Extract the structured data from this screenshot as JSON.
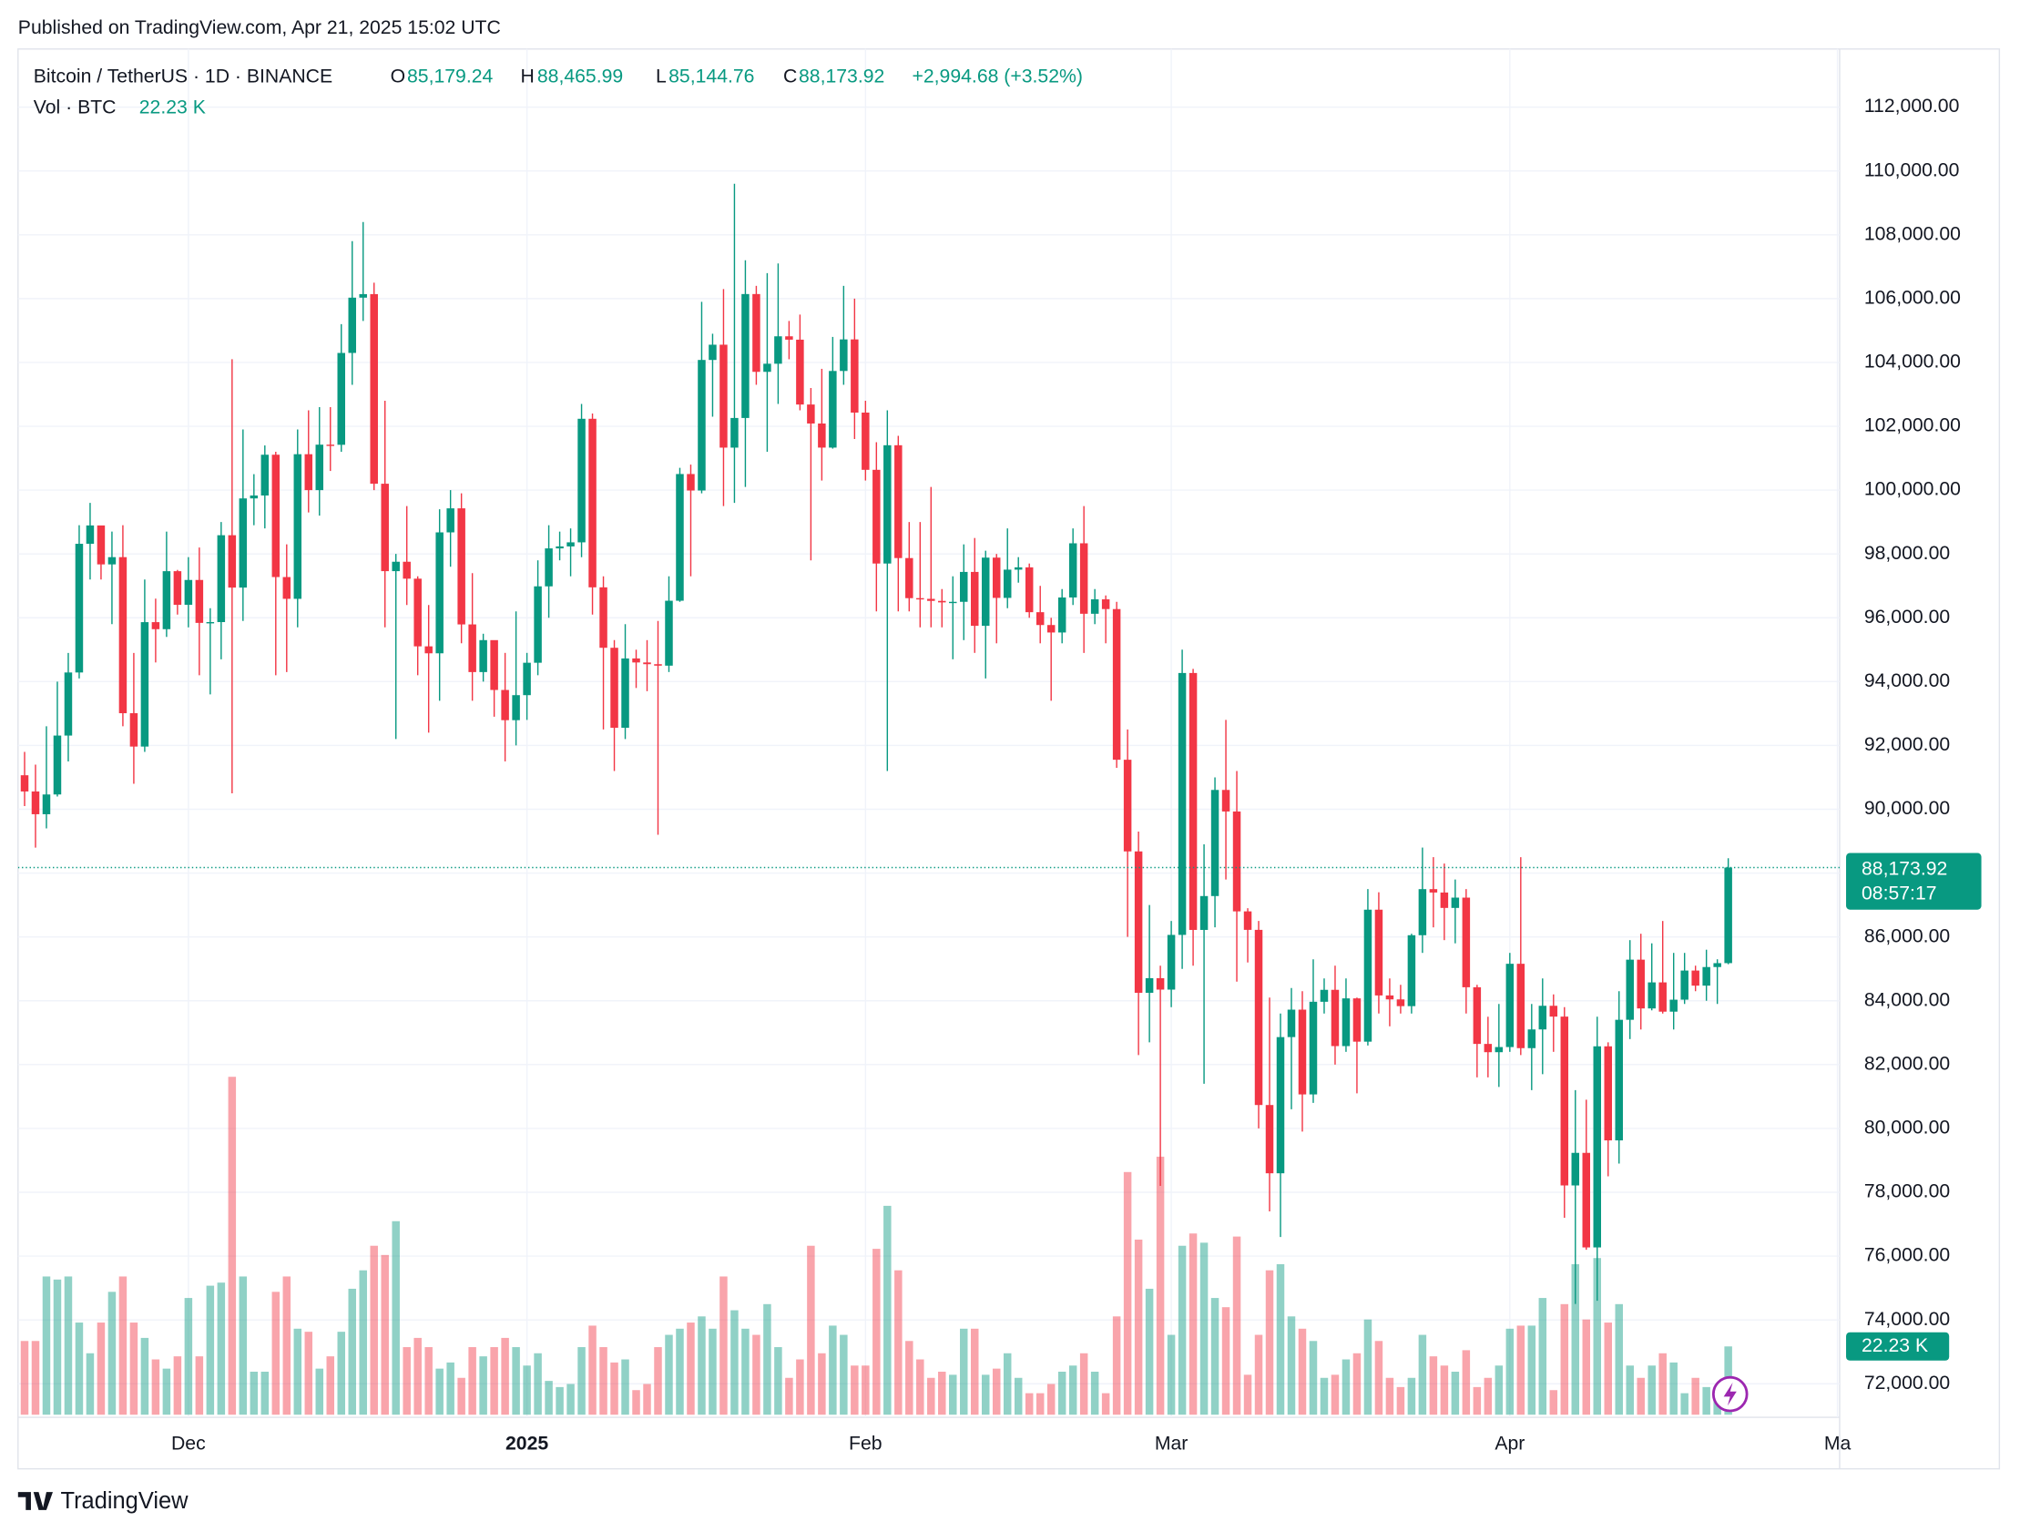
{
  "published": "Published on TradingView.com, Apr 21, 2025 15:02 UTC",
  "brand": "TradingView",
  "chart_data": {
    "type": "candlestick",
    "title": "Bitcoin / TetherUS · 1D · BINANCE",
    "header": {
      "o_label": "O",
      "o": "85,179.24",
      "h_label": "H",
      "h": "88,465.99",
      "l_label": "L",
      "l": "85,144.76",
      "c_label": "C",
      "c": "88,173.92",
      "change": "+2,994.68 (+3.52%)",
      "vol_label": "Vol · BTC",
      "vol": "22.23 K"
    },
    "price_tag": "88,173.92",
    "countdown": "08:57:17",
    "volume_tag": "22.23 K",
    "up_color": "#089981",
    "down_color": "#f23645",
    "grid": true,
    "xlim": [
      -0.6,
      166.2
    ],
    "xticks": [
      {
        "value": 15,
        "label": "Dec"
      },
      {
        "value": 46,
        "label": "2025"
      },
      {
        "value": 77,
        "label": "Feb"
      },
      {
        "value": 105,
        "label": "Mar"
      },
      {
        "value": 136,
        "label": "Apr"
      },
      {
        "value": 166,
        "label": "Ma"
      }
    ],
    "ylim": [
      70950,
      113740
    ],
    "yticks": [
      {
        "value": 72000,
        "label": "72,000.00"
      },
      {
        "value": 74000,
        "label": "74,000.00"
      },
      {
        "value": 76000,
        "label": "76,000.00"
      },
      {
        "value": 78000,
        "label": "78,000.00"
      },
      {
        "value": 80000,
        "label": "80,000.00"
      },
      {
        "value": 82000,
        "label": "82,000.00"
      },
      {
        "value": 84000,
        "label": "84,000.00"
      },
      {
        "value": 86000,
        "label": "86,000.00"
      },
      {
        "value": 88000,
        "label": "88,000.00"
      },
      {
        "value": 90000,
        "label": "90,000.00"
      },
      {
        "value": 92000,
        "label": "92,000.00"
      },
      {
        "value": 94000,
        "label": "94,000.00"
      },
      {
        "value": 96000,
        "label": "96,000.00"
      },
      {
        "value": 98000,
        "label": "98,000.00"
      },
      {
        "value": 100000,
        "label": "100,000.00"
      },
      {
        "value": 102000,
        "label": "102,000.00"
      },
      {
        "value": 104000,
        "label": "104,000.00"
      },
      {
        "value": 106000,
        "label": "106,000.00"
      },
      {
        "value": 108000,
        "label": "108,000.00"
      },
      {
        "value": 110000,
        "label": "110,000.00"
      },
      {
        "value": 112000,
        "label": "112,000.00"
      }
    ],
    "open": [
      91066,
      90558,
      89845,
      90464,
      92310,
      94286,
      98318,
      98893,
      97673,
      97900,
      93010,
      91965,
      95863,
      95643,
      97460,
      96407,
      97185,
      95840,
      95865,
      98587,
      96946,
      99740,
      99831,
      101109,
      97276,
      96594,
      101125,
      100000,
      101424,
      101420,
      104298,
      106030,
      106141,
      100200,
      97461,
      97756,
      97225,
      95105,
      94887,
      98676,
      99429,
      95792,
      94299,
      95300,
      93738,
      92792,
      93576,
      94591,
      96985,
      98174,
      98236,
      98364,
      102235,
      96954,
      95060,
      92553,
      94726,
      94600,
      94546,
      94500,
      96534,
      100504,
      99988,
      104078,
      104556,
      101331,
      102260,
      106143,
      103706,
      103960,
      104819,
      104714,
      102682,
      102087,
      101332,
      103733,
      104722,
      102429,
      100636,
      97700,
      101406,
      97871,
      96615,
      96593,
      96529,
      96482,
      96500,
      97437,
      95748,
      97885,
      96623,
      97508,
      97580,
      96175,
      95773,
      95539,
      96636,
      98334,
      96126,
      96578,
      96273,
      91552,
      88680,
      84250,
      84708,
      84350,
      86064,
      94270,
      86220,
      87281,
      90606,
      89931,
      86801,
      86222,
      80734,
      78595,
      82862,
      83722,
      81066,
      83969,
      84343,
      82580,
      84075,
      82719,
      86854,
      84167,
      84043,
      83832,
      86054,
      87498,
      87392,
      86909,
      87232,
      84424,
      82648,
      82389,
      82550,
      85159,
      82516,
      83102,
      83843,
      83504,
      78214,
      79235,
      76272,
      82573,
      79626,
      83404,
      85288,
      83760,
      84576,
      83659,
      84034,
      84947,
      84474,
      85057,
      85179.24
    ],
    "high": [
      91800,
      91400,
      92600,
      94000,
      94900,
      98900,
      99600,
      98800,
      98700,
      98900,
      94900,
      97200,
      96600,
      98700,
      97500,
      97900,
      98200,
      96300,
      99000,
      104100,
      101900,
      100500,
      101400,
      101200,
      98300,
      101900,
      102500,
      102600,
      102600,
      105200,
      107800,
      108400,
      106500,
      102800,
      98000,
      99500,
      97300,
      96400,
      99400,
      100000,
      99900,
      97400,
      95500,
      95200,
      94900,
      96200,
      94900,
      97800,
      98900,
      98700,
      98800,
      102700,
      102400,
      97300,
      95300,
      95800,
      95000,
      95300,
      95900,
      97300,
      100700,
      100800,
      105900,
      104900,
      106300,
      109600,
      107200,
      106400,
      106800,
      107100,
      105300,
      105500,
      103200,
      103800,
      104800,
      106400,
      106000,
      102800,
      101500,
      102500,
      101700,
      99000,
      99000,
      100100,
      96900,
      97300,
      98300,
      98500,
      98100,
      98000,
      98800,
      97900,
      97700,
      97000,
      96000,
      96900,
      98800,
      99500,
      96900,
      96700,
      96500,
      92500,
      89300,
      87000,
      85100,
      86500,
      95000,
      94400,
      88900,
      91000,
      92800,
      91200,
      86900,
      86500,
      84100,
      83600,
      84400,
      84300,
      85300,
      84700,
      85100,
      84700,
      84100,
      87500,
      87400,
      84700,
      84500,
      86100,
      88800,
      88500,
      88300,
      87800,
      87500,
      84500,
      83500,
      83900,
      85500,
      88500,
      83900,
      84700,
      84200,
      83800,
      81200,
      80900,
      83500,
      82700,
      84300,
      85900,
      86100,
      85800,
      86500,
      85500,
      85500,
      85100,
      85600,
      85300,
      88465.99
    ],
    "low": [
      90100,
      88800,
      89400,
      90400,
      91500,
      94100,
      97200,
      97200,
      95800,
      92600,
      90800,
      91800,
      94600,
      95400,
      96100,
      95700,
      94200,
      93600,
      94700,
      90500,
      95900,
      98900,
      98800,
      94200,
      94300,
      95700,
      99300,
      99200,
      100600,
      101200,
      103300,
      105300,
      100000,
      95700,
      92200,
      96400,
      94200,
      92400,
      93400,
      97600,
      95200,
      93400,
      94000,
      92900,
      91500,
      92000,
      92800,
      94200,
      96000,
      97800,
      97300,
      97900,
      96100,
      92500,
      91200,
      92200,
      93800,
      93700,
      89200,
      94300,
      96500,
      97300,
      99900,
      102300,
      99500,
      99600,
      100100,
      103300,
      101200,
      102700,
      104100,
      102500,
      97800,
      100300,
      101300,
      103300,
      101600,
      100300,
      96200,
      91200,
      96200,
      96200,
      95700,
      95700,
      95700,
      94700,
      95300,
      94900,
      94100,
      95200,
      96300,
      97100,
      96000,
      95200,
      93400,
      95200,
      96400,
      94900,
      95800,
      95200,
      91300,
      86000,
      82300,
      82700,
      78200,
      83800,
      85000,
      85100,
      81400,
      86300,
      87800,
      84600,
      85200,
      80000,
      77400,
      76600,
      80600,
      79900,
      80800,
      83600,
      82000,
      82400,
      81100,
      82600,
      83600,
      83200,
      83600,
      83600,
      85500,
      86300,
      85900,
      85800,
      83600,
      81600,
      81600,
      81300,
      82400,
      82300,
      81200,
      81700,
      82400,
      77200,
      74500,
      76200,
      74600,
      78500,
      78900,
      82800,
      83100,
      83700,
      83600,
      83100,
      83900,
      84300,
      84000,
      83900,
      85144.76
    ],
    "close": [
      90558,
      89845,
      90464,
      92310,
      94286,
      98318,
      98893,
      97673,
      97900,
      93010,
      91965,
      95863,
      95643,
      97460,
      96407,
      97185,
      95840,
      95865,
      98587,
      96946,
      99740,
      99831,
      101109,
      97276,
      96594,
      101125,
      100000,
      101424,
      101420,
      104298,
      106030,
      106141,
      100200,
      97461,
      97756,
      97225,
      95105,
      94887,
      98676,
      99429,
      95792,
      94299,
      95300,
      93738,
      92792,
      93576,
      94591,
      96985,
      98174,
      98236,
      98364,
      102235,
      96954,
      95060,
      92553,
      94726,
      94600,
      94546,
      94500,
      96534,
      100504,
      99988,
      104078,
      104556,
      101331,
      102260,
      106143,
      103706,
      103960,
      104819,
      104714,
      102682,
      102087,
      101332,
      103733,
      104722,
      102429,
      100636,
      97700,
      101406,
      97871,
      96615,
      96593,
      96529,
      96482,
      96500,
      97437,
      95748,
      97885,
      96623,
      97508,
      97580,
      96175,
      95773,
      95539,
      96636,
      98334,
      96126,
      96578,
      96273,
      91552,
      88680,
      84250,
      84708,
      84350,
      86064,
      94270,
      86220,
      87281,
      90606,
      89931,
      86801,
      86222,
      80734,
      78595,
      82862,
      83722,
      81066,
      83969,
      84343,
      82580,
      84075,
      82719,
      86854,
      84167,
      84043,
      83832,
      86054,
      87498,
      87392,
      86909,
      87232,
      84424,
      82648,
      82389,
      82550,
      85159,
      82516,
      83102,
      83843,
      83504,
      78214,
      79235,
      76272,
      82573,
      79626,
      83404,
      85288,
      83760,
      84576,
      83659,
      84034,
      84947,
      84474,
      85057,
      85179.24,
      88173.92
    ],
    "volume": [
      24,
      24,
      45,
      44,
      45,
      30,
      20,
      30,
      40,
      45,
      30,
      25,
      18,
      15,
      19,
      38,
      19,
      42,
      43,
      110,
      45,
      14,
      14,
      40,
      45,
      28,
      27,
      15,
      19,
      27,
      41,
      47,
      55,
      52,
      63,
      22,
      25,
      22,
      15,
      17,
      12,
      22,
      19,
      22,
      25,
      22,
      16,
      20,
      11,
      9,
      10,
      22,
      29,
      22,
      17,
      18,
      8,
      10,
      22,
      26,
      28,
      30,
      32,
      28,
      45,
      34,
      28,
      26,
      36,
      22,
      12,
      18,
      55,
      20,
      29,
      26,
      16,
      16,
      54,
      68,
      47,
      24,
      18,
      12,
      14,
      13,
      28,
      28,
      13,
      15,
      20,
      12,
      7,
      7,
      10,
      14,
      16,
      20,
      14,
      7,
      32,
      79,
      57,
      41,
      84,
      26,
      55,
      59,
      56,
      38,
      35,
      58,
      13,
      26,
      47,
      49,
      32,
      28,
      24,
      12,
      13,
      18,
      20,
      31,
      24,
      12,
      9,
      12,
      26,
      19,
      16,
      14,
      21,
      9,
      12,
      16,
      28,
      29,
      29,
      38,
      8,
      36,
      49,
      31,
      51,
      30,
      36,
      16,
      12,
      16,
      20,
      17,
      7,
      12,
      9,
      5,
      22.23
    ]
  }
}
